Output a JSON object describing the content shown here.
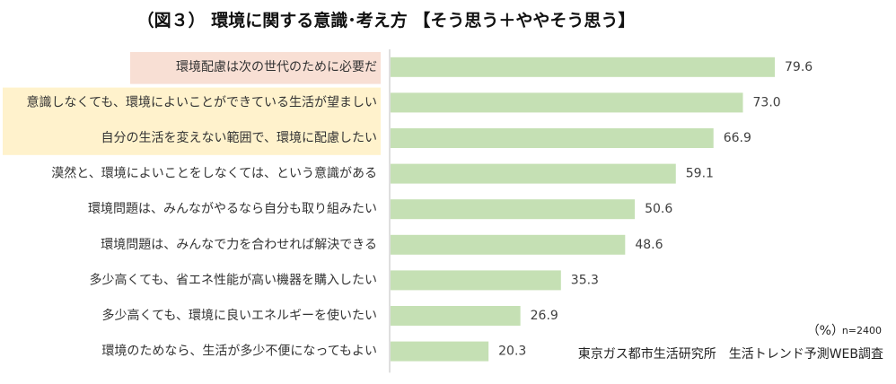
{
  "title": "（図３） 環境に関する意識･考え方 【そう思う＋ややそう思う】",
  "chart_data": {
    "type": "bar",
    "orientation": "horizontal",
    "title": "（図３） 環境に関する意識･考え方 【そう思う＋ややそう思う】",
    "categories": [
      "環境配慮は次の世代のために必要だ",
      "意識しなくても、環境によいことができている生活が望ましい",
      "自分の生活を変えない範囲で、環境に配慮したい",
      "漠然と、環境によいことをしなくては、という意識がある",
      "環境問題は、みんながやるなら自分も取り組みたい",
      "環境問題は、みんなで力を合わせれば解決できる",
      "多少高くても、省エネ性能が高い機器を購入したい",
      "多少高くても、環境に良いエネルギーを使いたい",
      "環境のためなら、生活が多少不便になってもよい"
    ],
    "values": [
      79.6,
      73.0,
      66.9,
      59.1,
      50.6,
      48.6,
      35.3,
      26.9,
      20.3
    ],
    "value_labels": [
      "79.6",
      "73.0",
      "66.9",
      "59.1",
      "50.6",
      "48.6",
      "35.3",
      "26.9",
      "20.3"
    ],
    "xlim": [
      0,
      100
    ],
    "unit": "(%)",
    "bar_color": "#c5e0b4",
    "highlight": [
      {
        "indices": [
          0
        ],
        "color": "#f8dfd4"
      },
      {
        "indices": [
          1,
          2
        ],
        "color": "#fff2cc"
      }
    ]
  },
  "unit_label": "（%）",
  "sample_size": "n=2400",
  "source": "東京ガス都市生活研究所　生活トレンド予測WEB調査"
}
